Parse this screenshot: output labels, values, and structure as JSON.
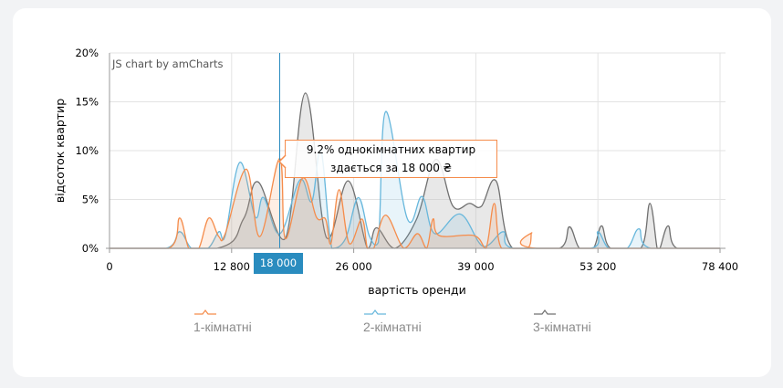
{
  "chart_data": {
    "type": "area",
    "xlabel": "вартість оренди",
    "ylabel": "відсоток квартир",
    "x_ticks": [
      0,
      12800,
      26000,
      39000,
      53200,
      78400
    ],
    "x_tick_labels": [
      "0",
      "12 800",
      "26 000",
      "39 000",
      "53 200",
      "78 400"
    ],
    "y_ticks": [
      0,
      5,
      10,
      15,
      20
    ],
    "y_tick_labels": [
      "0%",
      "5%",
      "10%",
      "15%",
      "20%"
    ],
    "ylim": [
      0,
      20
    ],
    "xlim": [
      0,
      78400
    ],
    "grid": true,
    "smoothed": true,
    "legend_position": "bottom",
    "series": [
      {
        "name": "1-кімнатні",
        "color": "#f58c4b",
        "points": [
          [
            0,
            0
          ],
          [
            6200,
            0
          ],
          [
            7350,
            3.1
          ],
          [
            8310,
            0
          ],
          [
            9360,
            0
          ],
          [
            10410,
            3.1
          ],
          [
            11460,
            1.2
          ],
          [
            12130,
            1.5
          ],
          [
            14380,
            8.1
          ],
          [
            15850,
            1.2
          ],
          [
            18000,
            9.2
          ],
          [
            18610,
            1
          ],
          [
            20480,
            7.2
          ],
          [
            21960,
            3.2
          ],
          [
            22950,
            3
          ],
          [
            23540,
            0.5
          ],
          [
            24420,
            6
          ],
          [
            25510,
            0.5
          ],
          [
            26870,
            3
          ],
          [
            27460,
            0
          ],
          [
            28130,
            0
          ],
          [
            29400,
            3.4
          ],
          [
            31340,
            0
          ],
          [
            32790,
            1.5
          ],
          [
            33760,
            0
          ],
          [
            34440,
            3
          ],
          [
            35120,
            1.3
          ],
          [
            38810,
            1.3
          ],
          [
            40170,
            0
          ],
          [
            41140,
            4.6
          ],
          [
            41990,
            0
          ],
          [
            44980,
            0
          ],
          [
            45510,
            1.6
          ],
          [
            46050,
            0
          ],
          [
            78400,
            0
          ]
        ]
      },
      {
        "name": "2-кімнатні",
        "color": "#67b7dc",
        "points": [
          [
            0,
            0
          ],
          [
            5920,
            0
          ],
          [
            7350,
            1.7
          ],
          [
            8600,
            0
          ],
          [
            10320,
            0
          ],
          [
            11460,
            1.7
          ],
          [
            12130,
            1.3
          ],
          [
            13690,
            8.8
          ],
          [
            15360,
            3.2
          ],
          [
            16250,
            5.2
          ],
          [
            18020,
            1.5
          ],
          [
            20190,
            7
          ],
          [
            21470,
            4.8
          ],
          [
            22460,
            10
          ],
          [
            23640,
            0
          ],
          [
            25120,
            1
          ],
          [
            26490,
            5.2
          ],
          [
            27650,
            1.3
          ],
          [
            28620,
            0.6
          ],
          [
            29400,
            14
          ],
          [
            31720,
            3
          ],
          [
            33280,
            5.3
          ],
          [
            34630,
            1.5
          ],
          [
            37350,
            3.5
          ],
          [
            39850,
            0.2
          ],
          [
            42200,
            1.7
          ],
          [
            43380,
            0
          ],
          [
            52350,
            0
          ],
          [
            53200,
            1.7
          ],
          [
            55460,
            0
          ],
          [
            59220,
            0
          ],
          [
            61660,
            2
          ],
          [
            64110,
            0
          ],
          [
            78400,
            0
          ]
        ]
      },
      {
        "name": "3-кімнатні",
        "color": "#707070",
        "points": [
          [
            0,
            0
          ],
          [
            11270,
            0
          ],
          [
            14080,
            3
          ],
          [
            15660,
            6.8
          ],
          [
            18610,
            1
          ],
          [
            20780,
            15.9
          ],
          [
            23050,
            1.1
          ],
          [
            25410,
            6.9
          ],
          [
            27460,
            0
          ],
          [
            28430,
            2.1
          ],
          [
            30370,
            0
          ],
          [
            32700,
            3
          ],
          [
            34740,
            9.1
          ],
          [
            36580,
            4.3
          ],
          [
            38330,
            4.6
          ],
          [
            39640,
            4.3
          ],
          [
            41350,
            6.9
          ],
          [
            43270,
            0
          ],
          [
            48720,
            0
          ],
          [
            49890,
            2.2
          ],
          [
            51060,
            0
          ],
          [
            52670,
            0
          ],
          [
            53950,
            2.3
          ],
          [
            55830,
            0
          ],
          [
            62040,
            0
          ],
          [
            63920,
            4.6
          ],
          [
            65420,
            0
          ],
          [
            66000,
            0
          ],
          [
            67690,
            2.3
          ],
          [
            69570,
            0
          ],
          [
            78400,
            0
          ]
        ]
      }
    ],
    "cursor": {
      "x": 18000,
      "label": "18 000",
      "color": "#2a8cbf"
    },
    "tooltip": {
      "line1": "9.2% однокімнатних квартир",
      "line2": "здається за 18 000 ₴"
    },
    "credit": "JS chart by amCharts"
  }
}
